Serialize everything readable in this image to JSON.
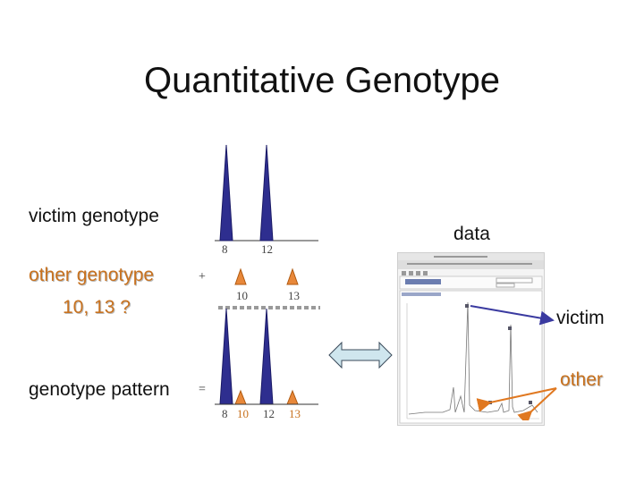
{
  "title": "Quantitative Genotype",
  "victim_label": "victim genotype",
  "other_label": "other genotype",
  "other_query": "10, 13 ?",
  "pattern_label": "genotype pattern",
  "data_label": "data",
  "plus": "+",
  "equals": "=",
  "victim_peaks": [
    "8",
    "12"
  ],
  "other_peaks": [
    "10",
    "13"
  ],
  "pattern_peaks": [
    "8",
    "10",
    "12",
    "13"
  ],
  "screenshot_callouts": {
    "victim": "victim",
    "other": "other"
  },
  "colors": {
    "victim_peak": "#2e2e8f",
    "other_peak": "#e8883a",
    "callout_victim": "#3a3aa0",
    "callout_other": "#e07820",
    "double_arrow": "#cfe6ee"
  }
}
